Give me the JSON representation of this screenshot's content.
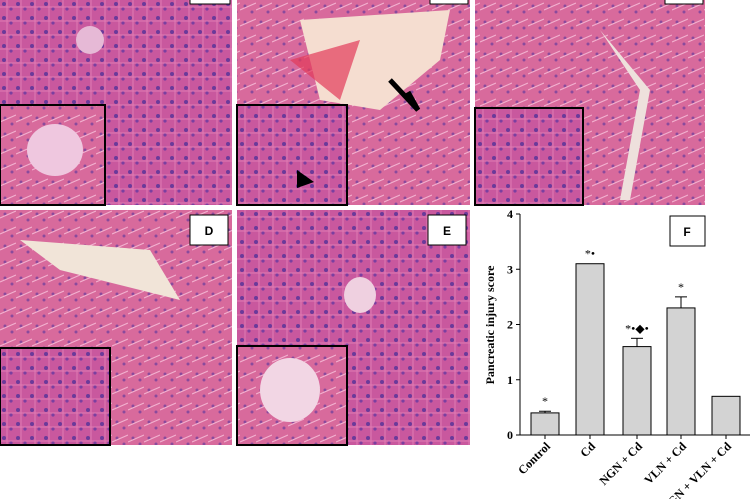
{
  "panels": {
    "d": "D",
    "e": "E"
  },
  "chart_data": {
    "type": "bar",
    "panel_label": "F",
    "y_label": "Pancreatic injury score",
    "categories": [
      "Control",
      "Cd",
      "NGN + Cd",
      "VLN + Cd",
      "NGN + VLN + Cd"
    ],
    "values": [
      0.4,
      3.1,
      1.6,
      2.3,
      0.7
    ],
    "errors": [
      0.03,
      0,
      0.15,
      0.2,
      0
    ],
    "annotations": [
      "*",
      "*•",
      "*•◆•",
      "*"
    ],
    "color": "#d3d3d3",
    "ylim": [
      0,
      4
    ],
    "yticks": [
      0,
      1,
      2,
      3,
      4
    ]
  }
}
